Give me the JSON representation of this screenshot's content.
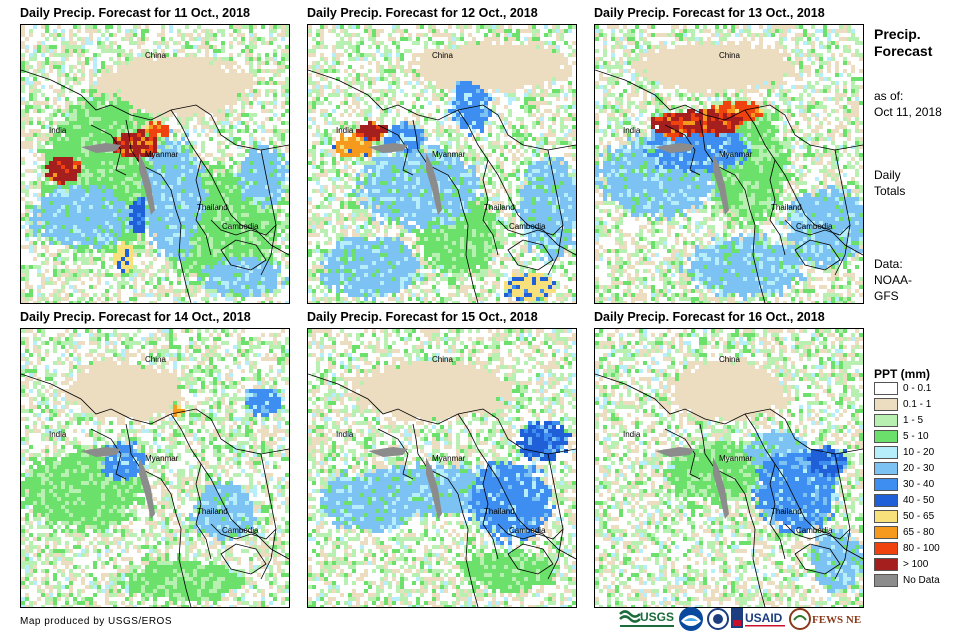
{
  "panels": [
    {
      "title": "Daily Precip. Forecast for 11 Oct., 2018"
    },
    {
      "title": "Daily Precip. Forecast for 12 Oct., 2018"
    },
    {
      "title": "Daily Precip. Forecast for 13 Oct., 2018"
    },
    {
      "title": "Daily Precip. Forecast for 14 Oct., 2018"
    },
    {
      "title": "Daily Precip. Forecast for 15 Oct., 2018"
    },
    {
      "title": "Daily Precip. Forecast for 16 Oct., 2018"
    }
  ],
  "map_labels": {
    "china": "China",
    "india": "India",
    "myanmar": "Myanmar",
    "thailand": "Thailand",
    "cambodia": "Cambodia"
  },
  "sidebar": {
    "title_line1": "Precip.",
    "title_line2": "Forecast",
    "asof_line1": "as of:",
    "asof_line2": "Oct 11, 2018",
    "daily_line1": "Daily",
    "daily_line2": "Totals",
    "data_line1": "Data:",
    "data_line2": "NOAA-",
    "data_line3": "GFS"
  },
  "legend": {
    "title": "PPT (mm)",
    "items": [
      {
        "label": "0 - 0.1",
        "color": "#ffffff"
      },
      {
        "label": "0.1 - 1",
        "color": "#ecdcc0"
      },
      {
        "label": "1 - 5",
        "color": "#b7f0b0"
      },
      {
        "label": "5 - 10",
        "color": "#6be06b"
      },
      {
        "label": "10 - 20",
        "color": "#b6eefb"
      },
      {
        "label": "20 - 30",
        "color": "#7cc2f3"
      },
      {
        "label": "30 - 40",
        "color": "#3d8ef0"
      },
      {
        "label": "40 - 50",
        "color": "#1f5fd8"
      },
      {
        "label": "50 - 65",
        "color": "#f8e07a"
      },
      {
        "label": "65 - 80",
        "color": "#f59a1c"
      },
      {
        "label": "80 - 100",
        "color": "#f0420f"
      },
      {
        "label": "> 100",
        "color": "#a51f1f"
      },
      {
        "label": "No Data",
        "color": "#8c8c8c"
      }
    ]
  },
  "footer": {
    "credit": "Map produced by USGS/EROS"
  },
  "logos": {
    "usgs": "USGS",
    "usaid": "USAID",
    "fews": "FEWS NET"
  }
}
